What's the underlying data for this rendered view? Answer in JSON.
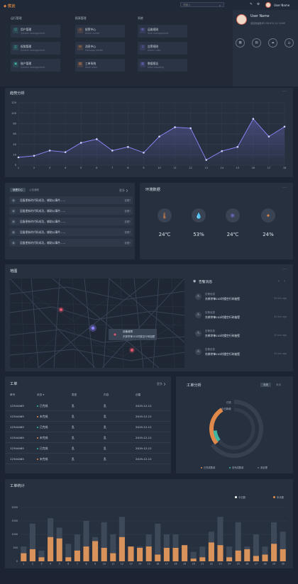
{
  "header": {
    "logo": "◆ 优云",
    "search_placeholder": "请输入",
    "user_name": "User Name",
    "icons": [
      "edit-icon",
      "gear-icon"
    ]
  },
  "menu": {
    "groups": [
      {
        "title": "运行管理",
        "items": [
          {
            "title": "用户管理",
            "sub": "System management",
            "icon": "user-icon",
            "color": "#3fb5a2"
          },
          {
            "title": "权限管理",
            "sub": "System management",
            "icon": "lock-icon",
            "color": "#3fb5a2"
          },
          {
            "title": "账户管理",
            "sub": "System management",
            "icon": "account-icon",
            "color": "#3fb5a2"
          }
        ]
      },
      {
        "title": "报表管理",
        "items": [
          {
            "title": "报警中心",
            "sub": "Alarm center",
            "icon": "alarm-icon",
            "color": "#e0894a"
          },
          {
            "title": "消息中心",
            "sub": "Message center",
            "icon": "message-icon",
            "color": "#e0894a"
          },
          {
            "title": "工单系统",
            "sub": "Work order",
            "icon": "ticket-icon",
            "color": "#e0894a"
          }
        ]
      },
      {
        "title": "系统",
        "items": [
          {
            "title": "运维规则",
            "sub": "Rule management",
            "icon": "rule-icon",
            "color": "#7e76e4"
          },
          {
            "title": "告警规则",
            "sub": "Alarm rules",
            "icon": "bell-icon",
            "color": "#7e76e4"
          },
          {
            "title": "数据报告",
            "sub": "Data reporting",
            "icon": "report-icon",
            "color": "#7e76e4"
          }
        ]
      }
    ]
  },
  "user_card": {
    "name": "User Name",
    "info": "项目管理员/ID     2019-11-11 10:00",
    "buttons": [
      "calendar-icon",
      "document-icon",
      "cloud-icon",
      "power-icon"
    ]
  },
  "trend": {
    "title": "趋势分析"
  },
  "todo": {
    "tabs": [
      "我是中心",
      "公告通知"
    ],
    "more": "更多 ❯",
    "items": [
      {
        "text": "设备更新的代码成功，辅助公事件......",
        "badge": "查看?"
      },
      {
        "text": "设备更新的代码成功，辅助公事件......",
        "badge": "查看?"
      },
      {
        "text": "设备更新的代码成功，辅助公事件......",
        "badge": "查看?"
      },
      {
        "text": "设备更新的代码成功，辅助公事件......",
        "badge": "查看?"
      },
      {
        "text": "设备更新的代码成功，辅助公事件......",
        "badge": "查看?"
      }
    ]
  },
  "env": {
    "title": "环境数据",
    "items": [
      {
        "icon": "thermometer-icon",
        "glyph": "🌡",
        "value": "24℃",
        "color": "#e0894a"
      },
      {
        "icon": "water-drop-icon",
        "glyph": "💧",
        "value": "53%",
        "color": "#3fb5a2"
      },
      {
        "icon": "snowflake-icon",
        "glyph": "❄",
        "value": "24℃",
        "color": "#7e76e4"
      },
      {
        "icon": "wind-icon",
        "glyph": "✦",
        "value": "24%",
        "color": "#e0894a"
      }
    ]
  },
  "map": {
    "title": "地图",
    "tooltip_line1": "设备故障",
    "tooltip_line2": "东郭李锋102时楼空行碎抽壁"
  },
  "messages": {
    "title": "告警消息",
    "items": [
      {
        "type": "告警信息",
        "text": "东郭李锋102时楼空行碎抽壁",
        "time": "20 min ago"
      },
      {
        "type": "告警信息",
        "text": "东郭李锋102时楼空行碎抽壁",
        "time": "20 min ago"
      },
      {
        "type": "告警信息",
        "text": "东郭李锋102时楼空行碎抽壁",
        "time": "20 min ago"
      },
      {
        "type": "告警信息",
        "text": "东郭李锋102时楼空行碎抽壁",
        "time": "20 min ago"
      }
    ]
  },
  "orders": {
    "title": "工单",
    "more": "更多 ❯",
    "columns": [
      "单号",
      "状态 ▾",
      "类型",
      "内容",
      "创建"
    ],
    "rows": [
      {
        "id": "12344465",
        "status": "已完成",
        "status_color": "#3fb5a2",
        "type": "乱",
        "content": "乱",
        "date": "2019-12-12"
      },
      {
        "id": "12344465",
        "status": "未完成",
        "status_color": "#e0894a",
        "type": "乱",
        "content": "乱",
        "date": "2019-12-12"
      },
      {
        "id": "12344465",
        "status": "已完成",
        "status_color": "#3fb5a2",
        "type": "乱",
        "content": "乱",
        "date": "2019-12-12"
      },
      {
        "id": "12344465",
        "status": "未完成",
        "status_color": "#e0894a",
        "type": "乱",
        "content": "乱",
        "date": "2019-12-12"
      },
      {
        "id": "12344465",
        "status": "已完成",
        "status_color": "#3fb5a2",
        "type": "乱",
        "content": "乱",
        "date": "2019-12-12"
      },
      {
        "id": "12344465",
        "status": "未完成",
        "status_color": "#e0894a",
        "type": "乱",
        "content": "乱",
        "date": "2019-12-12"
      }
    ]
  },
  "order_analysis": {
    "title": "工单分析",
    "tabs": [
      "今天",
      "本月"
    ],
    "label_a": "已完",
    "label_b": "今日新增",
    "legend": [
      "已完成数量",
      "未完成数量",
      "未处理"
    ]
  },
  "stats": {
    "title": "工单统计",
    "legend": [
      "今日数",
      "本月数"
    ]
  },
  "colors": {
    "orange": "#e0894a",
    "teal": "#3fb5a2",
    "purple": "#7e76e4"
  },
  "chart_data": [
    {
      "type": "line",
      "title": "趋势分析",
      "x": [
        1,
        2,
        3,
        4,
        5,
        6,
        7,
        8,
        9,
        10,
        11,
        12,
        13,
        14,
        15,
        16,
        17,
        18
      ],
      "series": [
        {
          "values": [
            15,
            18,
            28,
            25,
            43,
            50,
            28,
            35,
            24,
            55,
            73,
            71,
            10,
            27,
            35,
            89,
            55,
            74
          ]
        }
      ],
      "ylim": [
        0,
        120
      ],
      "yticks": [
        0,
        20,
        40,
        60,
        80,
        100,
        120
      ],
      "grid": true
    },
    {
      "type": "pie",
      "title": "工单分析",
      "series": [
        {
          "name": "已完成数量",
          "value": 45
        },
        {
          "name": "未完成数量",
          "value": 15
        },
        {
          "name": "未处理",
          "value": 40
        }
      ]
    },
    {
      "type": "bar",
      "title": "工单统计",
      "categories": [
        1,
        2,
        3,
        4,
        5,
        6,
        7,
        8,
        9,
        10,
        11,
        12,
        13,
        14,
        15,
        16,
        17,
        18,
        19,
        20,
        21,
        22,
        23,
        24,
        25,
        26,
        27,
        28,
        29,
        30
      ],
      "series": [
        {
          "name": "今日数",
          "values": [
            550,
            1400,
            400,
            1600,
            1250,
            650,
            1000,
            1500,
            900,
            1450,
            1000,
            1650,
            550,
            550,
            1000,
            1400,
            1000,
            1000,
            600,
            350,
            550,
            1100,
            1650,
            550,
            1450,
            550,
            1000,
            550,
            1450,
            1100
          ]
        },
        {
          "name": "本月数",
          "values": [
            300,
            450,
            150,
            900,
            850,
            150,
            400,
            550,
            750,
            500,
            300,
            900,
            550,
            500,
            550,
            250,
            500,
            500,
            600,
            100,
            150,
            700,
            600,
            150,
            400,
            450,
            200,
            250,
            650,
            450
          ]
        }
      ],
      "ylim": [
        0,
        2000
      ],
      "yticks": [
        0,
        500,
        1000,
        1500,
        2000
      ],
      "legend_position": "top-right"
    }
  ]
}
